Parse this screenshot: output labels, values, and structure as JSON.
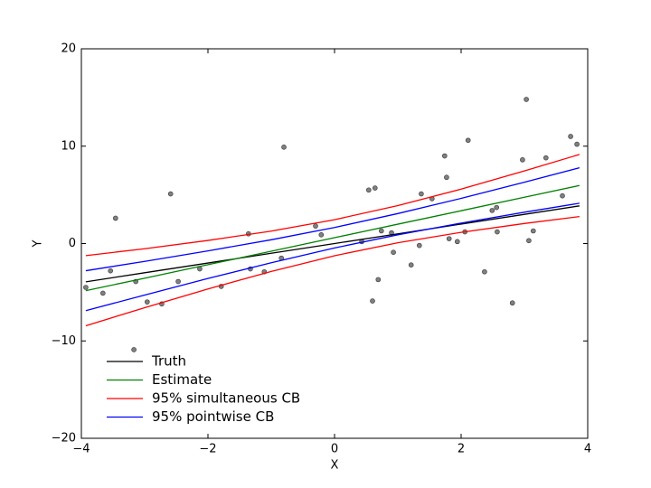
{
  "chart_data": {
    "type": "line",
    "xlabel": "X",
    "ylabel": "Y",
    "xlim": [
      -4,
      4
    ],
    "ylim": [
      -20,
      20
    ],
    "xticks": [
      {
        "value": -4,
        "label": "−4"
      },
      {
        "value": -2,
        "label": "−2"
      },
      0,
      2,
      4
    ],
    "yticks": [
      {
        "value": -20,
        "label": "−20"
      },
      {
        "value": -10,
        "label": "−10"
      },
      0,
      10,
      20
    ],
    "grid": false,
    "legend": "lower left",
    "x": [
      -3.93,
      -3,
      -2,
      -1,
      0,
      1,
      2,
      3,
      3.87
    ],
    "series": [
      {
        "name": "Truth",
        "color": "#000000",
        "values": [
          -3.93,
          -3,
          -2,
          -1,
          0,
          1,
          2,
          3,
          3.87
        ]
      },
      {
        "name": "Estimate",
        "color": "#008000",
        "values": [
          -4.84,
          -3.56,
          -2.17,
          -0.79,
          0.6,
          1.99,
          3.37,
          4.76,
          5.96
        ]
      },
      {
        "name": "95% simultaneous CB",
        "color": "#ff0000",
        "values": [
          -1.24,
          -0.53,
          0.32,
          1.28,
          2.45,
          3.9,
          5.59,
          7.46,
          9.15
        ]
      },
      {
        "name": "95% pointwise CB",
        "color": "#0000ff",
        "values": [
          -2.79,
          -1.83,
          -0.75,
          0.39,
          1.65,
          3.08,
          4.64,
          6.3,
          7.78
        ]
      }
    ],
    "bands_lower": [
      {
        "color": "#ff0000",
        "values": [
          -8.44,
          -6.59,
          -4.66,
          -2.86,
          -1.25,
          0.08,
          1.15,
          2.06,
          2.77
        ]
      },
      {
        "color": "#0000ff",
        "values": [
          -6.89,
          -5.29,
          -3.59,
          -1.97,
          -0.45,
          0.9,
          2.1,
          3.22,
          4.14
        ]
      }
    ],
    "scatter": {
      "color": "#808080",
      "x": [
        -3.93,
        -3.66,
        -3.54,
        -3.46,
        -3.17,
        -3.14,
        -2.96,
        -2.73,
        -2.59,
        -2.47,
        -2.13,
        -1.79,
        -1.36,
        -1.33,
        -1.11,
        -0.84,
        -0.8,
        -0.3,
        -0.21,
        0.43,
        0.54,
        0.6,
        0.64,
        0.69,
        0.74,
        0.9,
        0.93,
        1.21,
        1.34,
        1.37,
        1.54,
        1.74,
        1.77,
        1.81,
        1.94,
        2.06,
        2.11,
        2.37,
        2.49,
        2.56,
        2.57,
        2.81,
        2.97,
        3.03,
        3.07,
        3.14,
        3.34,
        3.6,
        3.73,
        3.83
      ],
      "y": [
        -4.5,
        -5.1,
        -2.8,
        2.6,
        -10.9,
        -3.9,
        -6.0,
        -6.2,
        5.1,
        -3.9,
        -2.6,
        -4.4,
        1.0,
        -2.6,
        -2.9,
        -1.5,
        9.9,
        1.8,
        0.9,
        0.2,
        5.5,
        -5.9,
        5.7,
        -3.7,
        1.3,
        1.1,
        -0.9,
        -2.2,
        -0.2,
        5.1,
        4.6,
        9.0,
        6.8,
        0.5,
        0.2,
        1.2,
        10.6,
        -2.9,
        3.4,
        3.7,
        1.2,
        -6.1,
        8.6,
        14.8,
        0.3,
        1.3,
        8.8,
        4.9,
        11.0,
        10.2
      ]
    }
  }
}
